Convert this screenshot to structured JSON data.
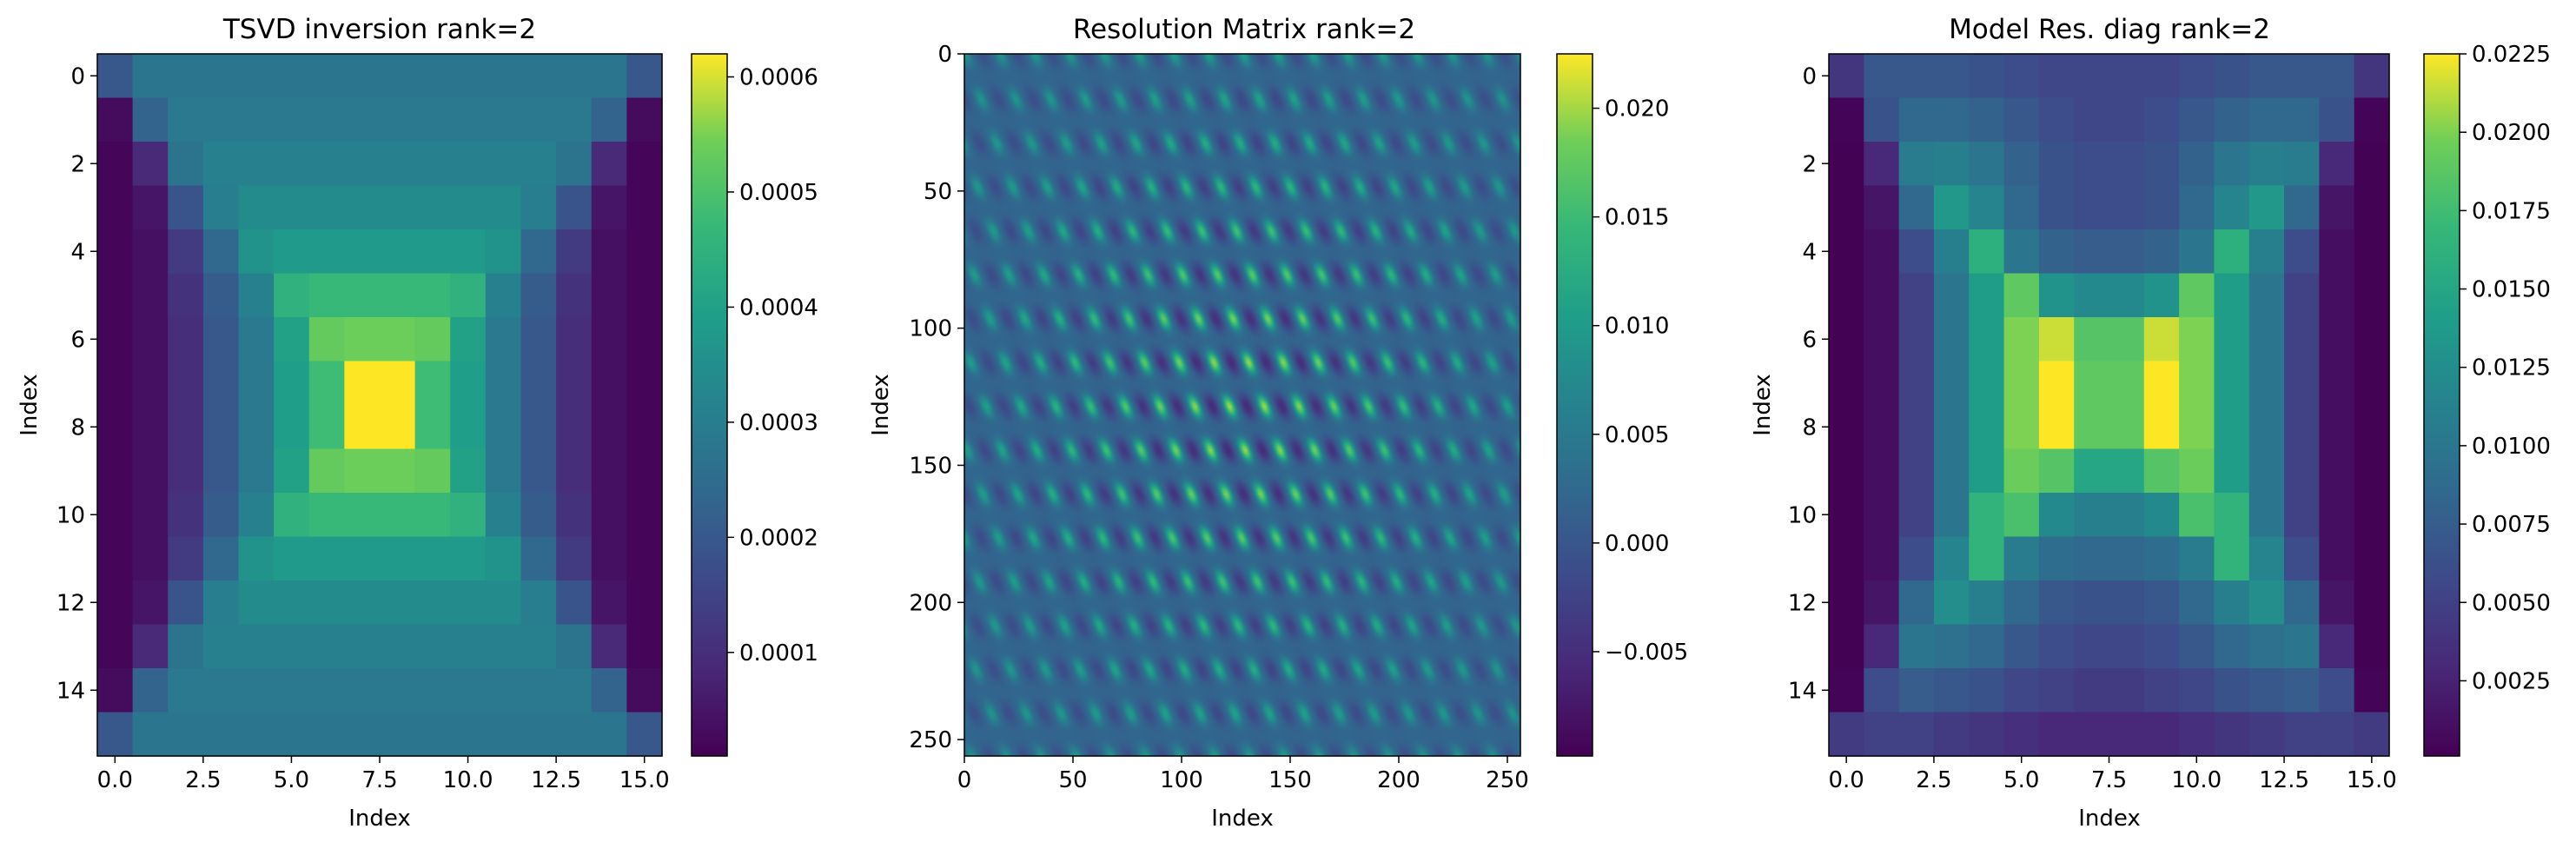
{
  "chart_data": [
    {
      "type": "heatmap",
      "title": "TSVD inversion rank=2",
      "xlabel": "Index",
      "ylabel": "Index",
      "grid_size": [
        16,
        16
      ],
      "xlim": [
        -0.5,
        15.5
      ],
      "ylim": [
        15.5,
        -0.5
      ],
      "x_ticks": [
        "0.0",
        "2.5",
        "5.0",
        "7.5",
        "10.0",
        "12.5",
        "15.0"
      ],
      "x_tick_values": [
        0,
        2.5,
        5,
        7.5,
        10,
        12.5,
        15
      ],
      "y_ticks": [
        "0",
        "2",
        "4",
        "6",
        "8",
        "10",
        "12",
        "14"
      ],
      "y_tick_values": [
        0,
        2,
        4,
        6,
        8,
        10,
        12,
        14
      ],
      "colorbar": {
        "vmin": 1e-05,
        "vmax": 0.00062,
        "tick_labels": [
          "0.0001",
          "0.0002",
          "0.0003",
          "0.0004",
          "0.0005",
          "0.0006"
        ],
        "tick_values": [
          0.0001,
          0.0002,
          0.0003,
          0.0004,
          0.0005,
          0.0006
        ]
      },
      "values": [
        [
          0.0002,
          0.00028,
          0.00028,
          0.00028,
          0.00028,
          0.00028,
          0.00028,
          0.00028,
          0.00028,
          0.00028,
          0.00028,
          0.00028,
          0.00028,
          0.00028,
          0.00028,
          0.0002
        ],
        [
          3e-05,
          0.00023,
          0.00029,
          0.00029,
          0.00029,
          0.00029,
          0.00029,
          0.00029,
          0.00029,
          0.00029,
          0.00029,
          0.00029,
          0.00029,
          0.00029,
          0.00023,
          3e-05
        ],
        [
          2e-05,
          9e-05,
          0.00027,
          0.00031,
          0.00031,
          0.00031,
          0.00031,
          0.00031,
          0.00031,
          0.00031,
          0.00031,
          0.00031,
          0.00031,
          0.00027,
          9e-05,
          2e-05
        ],
        [
          2e-05,
          5e-05,
          0.00019,
          0.0003,
          0.00034,
          0.00034,
          0.00034,
          0.00034,
          0.00034,
          0.00034,
          0.00034,
          0.00034,
          0.0003,
          0.00019,
          5e-05,
          2e-05
        ],
        [
          2e-05,
          4e-05,
          0.00013,
          0.00024,
          0.00036,
          0.00038,
          0.00038,
          0.00038,
          0.00038,
          0.00038,
          0.00038,
          0.00036,
          0.00024,
          0.00013,
          4e-05,
          2e-05
        ],
        [
          2e-05,
          4e-05,
          0.00011,
          0.00021,
          0.00031,
          0.00045,
          0.00047,
          0.00047,
          0.00047,
          0.00047,
          0.00045,
          0.00031,
          0.00021,
          0.00011,
          4e-05,
          2e-05
        ],
        [
          2e-05,
          4e-05,
          0.0001,
          0.0002,
          0.00029,
          0.0004,
          0.00053,
          0.00054,
          0.00054,
          0.00053,
          0.0004,
          0.00029,
          0.0002,
          0.0001,
          4e-05,
          2e-05
        ],
        [
          2e-05,
          4e-05,
          0.0001,
          0.0002,
          0.00029,
          0.00039,
          0.00048,
          0.00062,
          0.00062,
          0.00048,
          0.00039,
          0.00029,
          0.0002,
          0.0001,
          4e-05,
          2e-05
        ],
        [
          2e-05,
          4e-05,
          0.0001,
          0.0002,
          0.00029,
          0.00039,
          0.00048,
          0.00062,
          0.00062,
          0.00048,
          0.00039,
          0.00029,
          0.0002,
          0.0001,
          4e-05,
          2e-05
        ],
        [
          2e-05,
          4e-05,
          0.0001,
          0.0002,
          0.00029,
          0.0004,
          0.00053,
          0.00054,
          0.00054,
          0.00053,
          0.0004,
          0.00029,
          0.0002,
          0.0001,
          4e-05,
          2e-05
        ],
        [
          2e-05,
          4e-05,
          0.00011,
          0.00021,
          0.00031,
          0.00045,
          0.00047,
          0.00047,
          0.00047,
          0.00047,
          0.00045,
          0.00031,
          0.00021,
          0.00011,
          4e-05,
          2e-05
        ],
        [
          2e-05,
          4e-05,
          0.00013,
          0.00024,
          0.00036,
          0.00038,
          0.00038,
          0.00038,
          0.00038,
          0.00038,
          0.00038,
          0.00036,
          0.00024,
          0.00013,
          4e-05,
          2e-05
        ],
        [
          2e-05,
          5e-05,
          0.00019,
          0.0003,
          0.00034,
          0.00034,
          0.00034,
          0.00034,
          0.00034,
          0.00034,
          0.00034,
          0.00034,
          0.0003,
          0.00019,
          5e-05,
          2e-05
        ],
        [
          2e-05,
          9e-05,
          0.00027,
          0.00031,
          0.00031,
          0.00031,
          0.00031,
          0.00031,
          0.00031,
          0.00031,
          0.00031,
          0.00031,
          0.00031,
          0.00027,
          9e-05,
          2e-05
        ],
        [
          3e-05,
          0.00023,
          0.00029,
          0.00029,
          0.00029,
          0.00029,
          0.00029,
          0.00029,
          0.00029,
          0.00029,
          0.00029,
          0.00029,
          0.00029,
          0.00029,
          0.00023,
          3e-05
        ],
        [
          0.0002,
          0.00028,
          0.00028,
          0.00028,
          0.00028,
          0.00028,
          0.00028,
          0.00028,
          0.00028,
          0.00028,
          0.00028,
          0.00028,
          0.00028,
          0.00028,
          0.00028,
          0.0002
        ]
      ]
    },
    {
      "type": "heatmap",
      "title": "Resolution Matrix rank=2",
      "xlabel": "Index",
      "ylabel": "Index",
      "grid_size": [
        256,
        256
      ],
      "xlim": [
        0,
        256
      ],
      "ylim": [
        256,
        0
      ],
      "x_ticks": [
        "0",
        "50",
        "100",
        "150",
        "200",
        "250"
      ],
      "x_tick_values": [
        0,
        50,
        100,
        150,
        200,
        250
      ],
      "y_ticks": [
        "0",
        "50",
        "100",
        "150",
        "200",
        "250"
      ],
      "y_tick_values": [
        0,
        50,
        100,
        150,
        200,
        250
      ],
      "colorbar": {
        "vmin": -0.0098,
        "vmax": 0.0225,
        "tick_labels": [
          "−0.005",
          "0.000",
          "0.005",
          "0.010",
          "0.015",
          "0.020"
        ],
        "tick_values": [
          -0.005,
          0,
          0.005,
          0.01,
          0.015,
          0.02
        ]
      },
      "pattern": {
        "description": "periodic blob pattern from 16x16 block structure",
        "block_period": 16,
        "baseline": 0.002,
        "amplitude": 0.0185,
        "center": 128
      }
    },
    {
      "type": "heatmap",
      "title": "Model Res. diag rank=2",
      "xlabel": "Index",
      "ylabel": "Index",
      "grid_size": [
        16,
        16
      ],
      "xlim": [
        -0.5,
        15.5
      ],
      "ylim": [
        15.5,
        -0.5
      ],
      "x_ticks": [
        "0.0",
        "2.5",
        "5.0",
        "7.5",
        "10.0",
        "12.5",
        "15.0"
      ],
      "x_tick_values": [
        0,
        2.5,
        5,
        7.5,
        10,
        12.5,
        15
      ],
      "y_ticks": [
        "0",
        "2",
        "4",
        "6",
        "8",
        "10",
        "12",
        "14"
      ],
      "y_tick_values": [
        0,
        2,
        4,
        6,
        8,
        10,
        12,
        14
      ],
      "colorbar": {
        "vmin": 0.0001,
        "vmax": 0.0225,
        "tick_labels": [
          "0.0025",
          "0.0050",
          "0.0075",
          "0.0100",
          "0.0125",
          "0.0150",
          "0.0175",
          "0.0200",
          "0.0225"
        ],
        "tick_values": [
          0.0025,
          0.005,
          0.0075,
          0.01,
          0.0125,
          0.015,
          0.0175,
          0.02,
          0.0225
        ]
      },
      "values": [
        [
          0.004,
          0.007,
          0.007,
          0.007,
          0.0065,
          0.006,
          0.0055,
          0.0055,
          0.0055,
          0.0055,
          0.006,
          0.0065,
          0.007,
          0.007,
          0.007,
          0.004
        ],
        [
          0.0003,
          0.0065,
          0.0085,
          0.0085,
          0.008,
          0.007,
          0.006,
          0.0055,
          0.0055,
          0.006,
          0.007,
          0.008,
          0.0085,
          0.0085,
          0.0065,
          0.0003
        ],
        [
          0.0002,
          0.003,
          0.0105,
          0.011,
          0.01,
          0.008,
          0.0065,
          0.006,
          0.006,
          0.0065,
          0.008,
          0.01,
          0.011,
          0.0105,
          0.003,
          0.0002
        ],
        [
          0.0002,
          0.0015,
          0.0085,
          0.0135,
          0.0115,
          0.0085,
          0.0065,
          0.006,
          0.006,
          0.0065,
          0.0085,
          0.0115,
          0.0135,
          0.0085,
          0.0015,
          0.0002
        ],
        [
          0.0002,
          0.001,
          0.006,
          0.011,
          0.016,
          0.01,
          0.008,
          0.0075,
          0.0075,
          0.008,
          0.01,
          0.016,
          0.011,
          0.006,
          0.001,
          0.0002
        ],
        [
          0.0002,
          0.001,
          0.005,
          0.01,
          0.014,
          0.019,
          0.013,
          0.012,
          0.012,
          0.013,
          0.019,
          0.014,
          0.01,
          0.005,
          0.001,
          0.0002
        ],
        [
          0.0002,
          0.001,
          0.005,
          0.01,
          0.014,
          0.02,
          0.0215,
          0.0185,
          0.0185,
          0.0215,
          0.02,
          0.014,
          0.01,
          0.005,
          0.001,
          0.0002
        ],
        [
          0.0002,
          0.001,
          0.005,
          0.01,
          0.014,
          0.02,
          0.0225,
          0.019,
          0.019,
          0.0225,
          0.02,
          0.014,
          0.01,
          0.005,
          0.001,
          0.0002
        ],
        [
          0.0002,
          0.001,
          0.005,
          0.01,
          0.014,
          0.02,
          0.0225,
          0.019,
          0.019,
          0.0225,
          0.02,
          0.014,
          0.01,
          0.005,
          0.001,
          0.0002
        ],
        [
          0.0002,
          0.001,
          0.005,
          0.01,
          0.014,
          0.0195,
          0.0185,
          0.015,
          0.015,
          0.0185,
          0.0195,
          0.014,
          0.01,
          0.005,
          0.001,
          0.0002
        ],
        [
          0.0002,
          0.001,
          0.005,
          0.01,
          0.0165,
          0.018,
          0.012,
          0.011,
          0.011,
          0.012,
          0.018,
          0.0165,
          0.01,
          0.005,
          0.001,
          0.0002
        ],
        [
          0.0002,
          0.001,
          0.006,
          0.0115,
          0.0165,
          0.0105,
          0.009,
          0.0085,
          0.0085,
          0.009,
          0.0105,
          0.0165,
          0.0115,
          0.006,
          0.001,
          0.0002
        ],
        [
          0.0002,
          0.0015,
          0.0085,
          0.0125,
          0.011,
          0.0085,
          0.007,
          0.0065,
          0.0065,
          0.007,
          0.0085,
          0.011,
          0.0125,
          0.0085,
          0.0015,
          0.0002
        ],
        [
          0.0002,
          0.003,
          0.01,
          0.0095,
          0.0085,
          0.007,
          0.006,
          0.0055,
          0.0055,
          0.006,
          0.007,
          0.0085,
          0.0095,
          0.01,
          0.003,
          0.0002
        ],
        [
          0.0003,
          0.006,
          0.0075,
          0.007,
          0.0065,
          0.0055,
          0.005,
          0.0045,
          0.0045,
          0.005,
          0.0055,
          0.0065,
          0.007,
          0.0075,
          0.006,
          0.0003
        ],
        [
          0.0045,
          0.005,
          0.005,
          0.0045,
          0.004,
          0.0035,
          0.003,
          0.003,
          0.003,
          0.003,
          0.0035,
          0.004,
          0.0045,
          0.005,
          0.005,
          0.0045
        ]
      ]
    }
  ]
}
